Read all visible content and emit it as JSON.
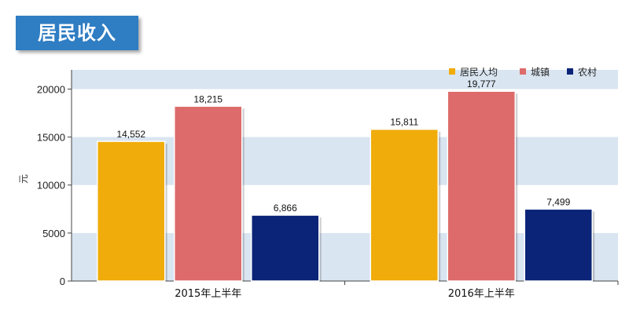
{
  "header": {
    "title": "居民收入"
  },
  "chart_data": {
    "type": "bar",
    "categories": [
      "2015年上半年",
      "2016年上半年"
    ],
    "series": [
      {
        "name": "居民人均",
        "values": [
          14552,
          15811
        ],
        "labels": [
          "14,552",
          "15,811"
        ],
        "color": "#f0ac0a"
      },
      {
        "name": "城镇",
        "values": [
          18215,
          19777
        ],
        "labels": [
          "18,215",
          "19,777"
        ],
        "color": "#de6b6b"
      },
      {
        "name": "农村",
        "values": [
          6866,
          7499
        ],
        "labels": [
          "6,866",
          "7,499"
        ],
        "color": "#0b2478"
      }
    ],
    "ylabel": "元",
    "ylim": [
      0,
      22000
    ],
    "yticks": [
      "0",
      "5000",
      "10000",
      "15000",
      "20000"
    ],
    "grid": "alternating horizontal bands",
    "legend": "top-right",
    "colors": {
      "band": "#d9e5f1",
      "title_bg": "#2f7dc3"
    }
  }
}
